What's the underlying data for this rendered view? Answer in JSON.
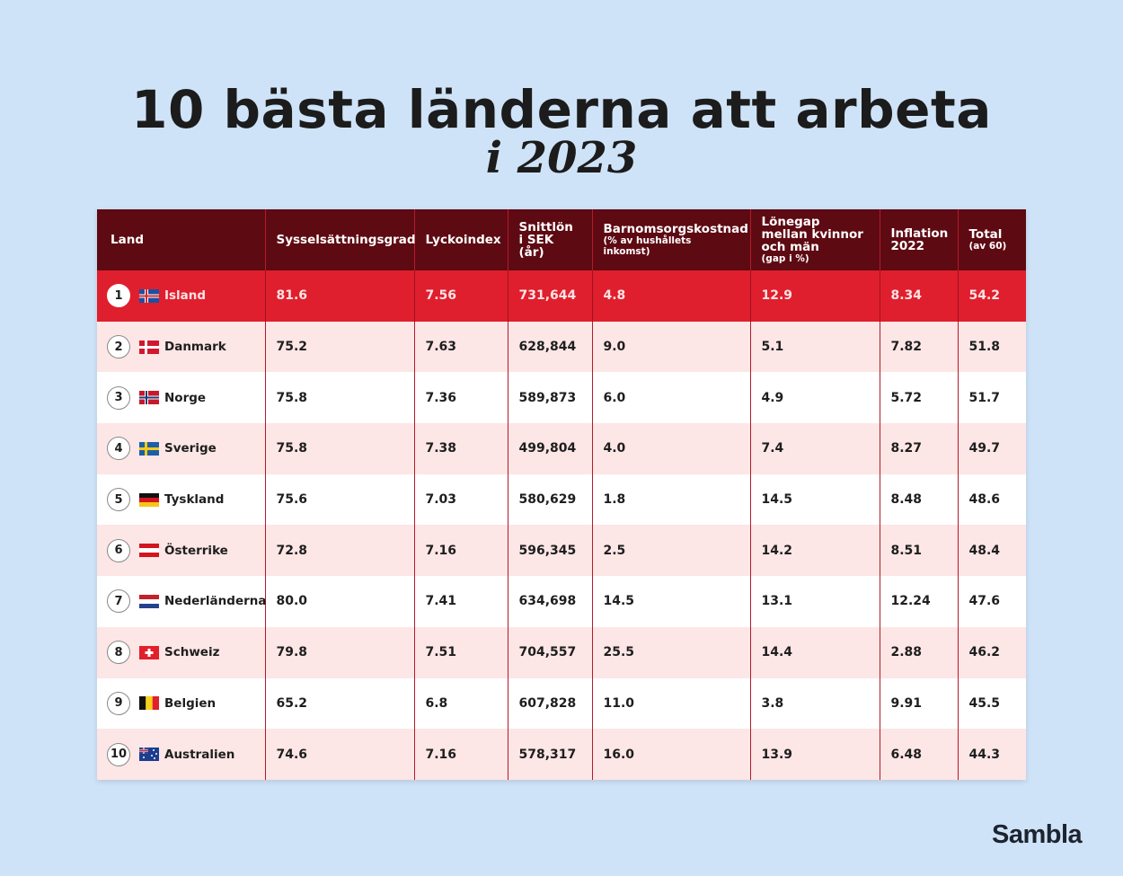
{
  "title": "10 bästa länderna att arbeta",
  "subtitle": "i 2023",
  "logo": "Sambla",
  "chart_data": {
    "type": "table",
    "columns": [
      {
        "label": "Land",
        "sub": ""
      },
      {
        "label": "Sysselsättningsgrad",
        "sub": ""
      },
      {
        "label": "Lyckoindex",
        "sub": ""
      },
      {
        "label": "Snittlön i SEK (år)",
        "sub": ""
      },
      {
        "label": "Barnomsorgskostnad",
        "sub": "(% av hushållets inkomst)"
      },
      {
        "label": "Lönegap mellan kvinnor och män",
        "sub": "(gap i %)"
      },
      {
        "label": "Inflation 2022",
        "sub": ""
      },
      {
        "label": "Total",
        "sub": "(av 60)"
      }
    ],
    "rows": [
      {
        "rank": "1",
        "country": "Island",
        "flag": "iceland-flag-icon",
        "values": [
          "81.6",
          "7.56",
          "731,644",
          "4.8",
          "12.9",
          "8.34",
          "54.2"
        ]
      },
      {
        "rank": "2",
        "country": "Danmark",
        "flag": "denmark-flag-icon",
        "values": [
          "75.2",
          "7.63",
          "628,844",
          "9.0",
          "5.1",
          "7.82",
          "51.8"
        ]
      },
      {
        "rank": "3",
        "country": "Norge",
        "flag": "norway-flag-icon",
        "values": [
          "75.8",
          "7.36",
          "589,873",
          "6.0",
          "4.9",
          "5.72",
          "51.7"
        ]
      },
      {
        "rank": "4",
        "country": "Sverige",
        "flag": "sweden-flag-icon",
        "values": [
          "75.8",
          "7.38",
          "499,804",
          "4.0",
          "7.4",
          "8.27",
          "49.7"
        ]
      },
      {
        "rank": "5",
        "country": "Tyskland",
        "flag": "germany-flag-icon",
        "values": [
          "75.6",
          "7.03",
          "580,629",
          "1.8",
          "14.5",
          "8.48",
          "48.6"
        ]
      },
      {
        "rank": "6",
        "country": "Österrike",
        "flag": "austria-flag-icon",
        "values": [
          "72.8",
          "7.16",
          "596,345",
          "2.5",
          "14.2",
          "8.51",
          "48.4"
        ]
      },
      {
        "rank": "7",
        "country": "Nederländerna",
        "flag": "netherlands-flag-icon",
        "values": [
          "80.0",
          "7.41",
          "634,698",
          "14.5",
          "13.1",
          "12.24",
          "47.6"
        ]
      },
      {
        "rank": "8",
        "country": "Schweiz",
        "flag": "switzerland-flag-icon",
        "values": [
          "79.8",
          "7.51",
          "704,557",
          "25.5",
          "14.4",
          "2.88",
          "46.2"
        ]
      },
      {
        "rank": "9",
        "country": "Belgien",
        "flag": "belgium-flag-icon",
        "values": [
          "65.2",
          "6.8",
          "607,828",
          "11.0",
          "3.8",
          "9.91",
          "45.5"
        ]
      },
      {
        "rank": "10",
        "country": "Australien",
        "flag": "australia-flag-icon",
        "values": [
          "74.6",
          "7.16",
          "578,317",
          "16.0",
          "13.9",
          "6.48",
          "44.3"
        ]
      }
    ]
  },
  "colors": {
    "background": "#cfe3f8",
    "header": "#5e0a13",
    "highlight": "#df1f2d",
    "row_alt": "#fde6e6",
    "divider": "#b51a2a"
  }
}
